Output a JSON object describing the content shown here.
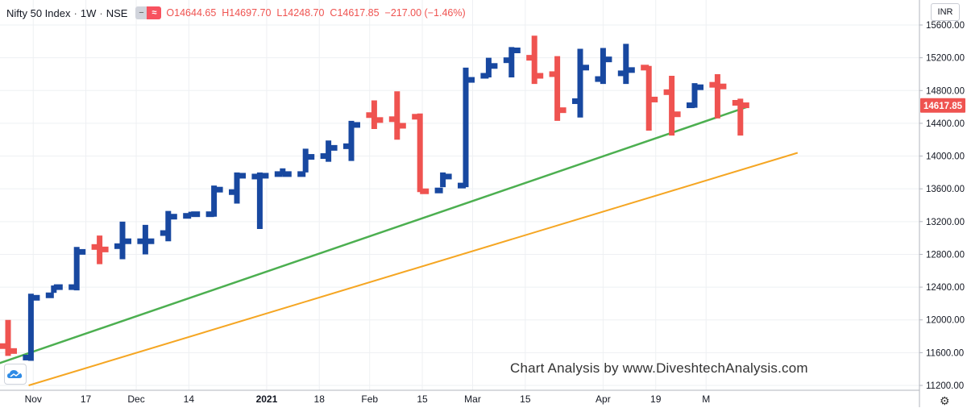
{
  "legend": {
    "symbol": "Nifty 50 Index",
    "interval": "1W",
    "exchange": "NSE",
    "open_label": "O",
    "open": "14644.65",
    "high_label": "H",
    "high": "14697.70",
    "low_label": "L",
    "low": "14248.70",
    "close_label": "C",
    "close": "14617.85",
    "change": "−217.00 (−1.46%)"
  },
  "currency_button": "INR",
  "last_price_label": "14617.85",
  "watermark": "Chart Analysis by www.DiveshtechAnalysis.com",
  "colors": {
    "up": "#1848a0",
    "down": "#ef5350",
    "support": "#4caf50",
    "channel": "#f5a623",
    "price_tag": "#ef5350"
  },
  "icons": {
    "settings": "gear-icon",
    "logo": "cloud-logo-icon"
  },
  "chart_data": {
    "type": "ohlc-bar",
    "interval": "1W",
    "ylim": [
      11200,
      15600
    ],
    "y_ticks": [
      11200,
      11600,
      12000,
      12400,
      12800,
      13200,
      13600,
      14000,
      14400,
      14800,
      15200,
      15600
    ],
    "y_tick_labels": [
      "11200.00",
      "11600.00",
      "12000.00",
      "12400.00",
      "12800.00",
      "13200.00",
      "13600.00",
      "14000.00",
      "14400.00",
      "14800.00",
      "15200.00",
      "15600.00"
    ],
    "x_ticks": [
      {
        "label": "Nov",
        "bar": 1.1
      },
      {
        "label": "17",
        "bar": 3.4
      },
      {
        "label": "Dec",
        "bar": 5.6
      },
      {
        "label": "14",
        "bar": 7.9
      },
      {
        "label": "2021",
        "bar": 11.3
      },
      {
        "label": "18",
        "bar": 13.6
      },
      {
        "label": "Feb",
        "bar": 15.8
      },
      {
        "label": "15",
        "bar": 18.1
      },
      {
        "label": "Mar",
        "bar": 20.3
      },
      {
        "label": "15",
        "bar": 22.6
      },
      {
        "label": "Apr",
        "bar": 26.0
      },
      {
        "label": "19",
        "bar": 28.3
      },
      {
        "label": "M",
        "bar": 30.5
      }
    ],
    "bars": [
      {
        "o": 11680,
        "h": 12000,
        "l": 11560,
        "c": 11620
      },
      {
        "o": 11540,
        "h": 12320,
        "l": 11500,
        "c": 12270
      },
      {
        "o": 12300,
        "h": 12420,
        "l": 12330,
        "c": 12400
      },
      {
        "o": 12400,
        "h": 12890,
        "l": 12360,
        "c": 12830
      },
      {
        "o": 12890,
        "h": 13030,
        "l": 12680,
        "c": 12860
      },
      {
        "o": 12900,
        "h": 13200,
        "l": 12740,
        "c": 12960
      },
      {
        "o": 12960,
        "h": 13160,
        "l": 12800,
        "c": 12960
      },
      {
        "o": 13060,
        "h": 13330,
        "l": 12960,
        "c": 13260
      },
      {
        "o": 13270,
        "h": 13320,
        "l": 13270,
        "c": 13290
      },
      {
        "o": 13290,
        "h": 13640,
        "l": 13260,
        "c": 13590
      },
      {
        "o": 13560,
        "h": 13800,
        "l": 13420,
        "c": 13760
      },
      {
        "o": 13750,
        "h": 13800,
        "l": 13110,
        "c": 13760
      },
      {
        "o": 13780,
        "h": 13850,
        "l": 13770,
        "c": 13780
      },
      {
        "o": 13780,
        "h": 14090,
        "l": 13800,
        "c": 13990
      },
      {
        "o": 14000,
        "h": 14190,
        "l": 13930,
        "c": 14100
      },
      {
        "o": 14120,
        "h": 14430,
        "l": 13940,
        "c": 14380
      },
      {
        "o": 14500,
        "h": 14680,
        "l": 14330,
        "c": 14440
      },
      {
        "o": 14450,
        "h": 14790,
        "l": 14200,
        "c": 14370
      },
      {
        "o": 14480,
        "h": 14520,
        "l": 13560,
        "c": 13570
      },
      {
        "o": 13580,
        "h": 13800,
        "l": 13620,
        "c": 13750
      },
      {
        "o": 13640,
        "h": 15080,
        "l": 13620,
        "c": 14930
      },
      {
        "o": 14980,
        "h": 15200,
        "l": 14960,
        "c": 15100
      },
      {
        "o": 15170,
        "h": 15330,
        "l": 14960,
        "c": 15290
      },
      {
        "o": 15200,
        "h": 15470,
        "l": 14880,
        "c": 14980
      },
      {
        "o": 15000,
        "h": 15220,
        "l": 14430,
        "c": 14560
      },
      {
        "o": 14670,
        "h": 15310,
        "l": 14470,
        "c": 15080
      },
      {
        "o": 14940,
        "h": 15320,
        "l": 14880,
        "c": 15180
      },
      {
        "o": 15010,
        "h": 15370,
        "l": 14880,
        "c": 15050
      },
      {
        "o": 15080,
        "h": 15100,
        "l": 14310,
        "c": 14690
      },
      {
        "o": 14780,
        "h": 14980,
        "l": 14250,
        "c": 14510
      },
      {
        "o": 14620,
        "h": 14890,
        "l": 14590,
        "c": 14840
      },
      {
        "o": 14870,
        "h": 15000,
        "l": 14460,
        "c": 14850
      },
      {
        "o": 14650,
        "h": 14700,
        "l": 14250,
        "c": 14620
      }
    ],
    "trendlines": [
      {
        "name": "support",
        "color": "#4caf50",
        "from": {
          "bar": -0.5,
          "y": 11460
        },
        "to": {
          "bar": 32.3,
          "y": 14600
        }
      },
      {
        "name": "channel",
        "color": "#f5a623",
        "from": {
          "bar": 0.9,
          "y": 11200
        },
        "to": {
          "bar": 34.5,
          "y": 14040
        }
      }
    ],
    "last_price": 14617.85
  }
}
